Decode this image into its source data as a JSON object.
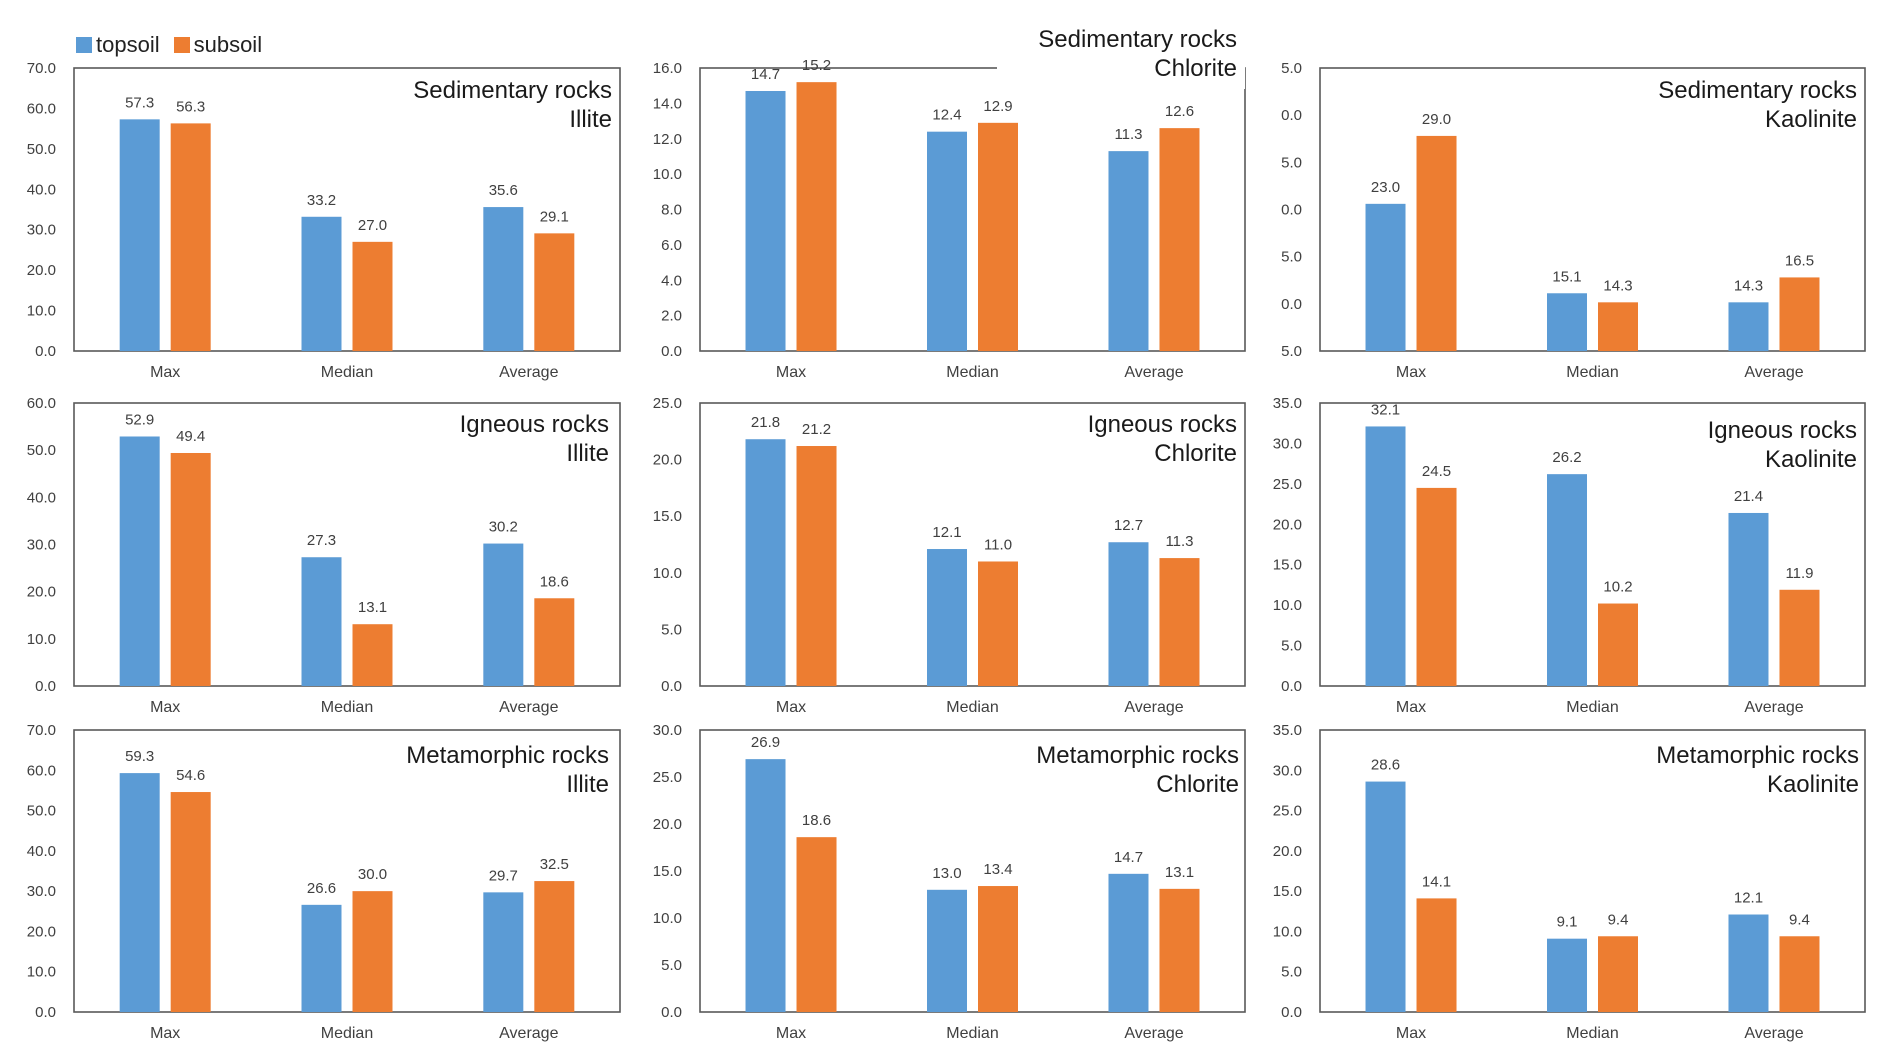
{
  "legend": {
    "topsoil": "topsoil",
    "subsoil": "subsoil"
  },
  "colors": {
    "topsoil": "#5b9bd5",
    "subsoil": "#ed7d31",
    "axis": "#595959",
    "text": "#404040",
    "title": "#1a1a1a"
  },
  "chart_data": [
    {
      "type": "bar",
      "title": [
        "Sedimentary rocks",
        "Illite"
      ],
      "categories": [
        "Max",
        "Median",
        "Average"
      ],
      "series": [
        {
          "name": "topsoil",
          "values": [
            57.3,
            33.2,
            35.6
          ]
        },
        {
          "name": "subsoil",
          "values": [
            56.3,
            27.0,
            29.1
          ]
        }
      ],
      "data_labels": [
        [
          "57.3",
          "33.2",
          "35.6"
        ],
        [
          "56.3",
          "27.0",
          "29.1"
        ]
      ],
      "ylim": [
        0,
        70
      ],
      "yticks": [
        "0.0",
        "10.0",
        "20.0",
        "30.0",
        "40.0",
        "50.0",
        "60.0",
        "70.0"
      ]
    },
    {
      "type": "bar",
      "title": [
        "Sedimentary rocks",
        "Chlorite"
      ],
      "categories": [
        "Max",
        "Median",
        "Average"
      ],
      "series": [
        {
          "name": "topsoil",
          "values": [
            14.7,
            12.4,
            11.3
          ]
        },
        {
          "name": "subsoil",
          "values": [
            15.2,
            12.9,
            12.6
          ]
        }
      ],
      "data_labels": [
        [
          "14.7",
          "12.4",
          "11.3"
        ],
        [
          "15.2",
          "12.9",
          "12.6"
        ]
      ],
      "ylim": [
        0,
        16
      ],
      "yticks": [
        "0.0",
        "2.0",
        "4.0",
        "6.0",
        "8.0",
        "10.0",
        "12.0",
        "14.0",
        "16.0"
      ]
    },
    {
      "type": "bar",
      "title": [
        "Sedimentary rocks",
        "Kaolinite"
      ],
      "categories": [
        "Max",
        "Median",
        "Average"
      ],
      "series": [
        {
          "name": "topsoil",
          "values": [
            23.0,
            15.1,
            14.3
          ]
        },
        {
          "name": "subsoil",
          "values": [
            29.0,
            14.3,
            16.5
          ]
        }
      ],
      "data_labels": [
        [
          "23.0",
          "15.1",
          "14.3"
        ],
        [
          "29.0",
          "14.3",
          "16.5"
        ]
      ],
      "ylim": [
        10,
        35
      ],
      "yticks": [
        "5.0",
        "0.0",
        "5.0",
        "0.0",
        "5.0",
        "0.0",
        "5.0"
      ]
    },
    {
      "type": "bar",
      "title": [
        "Igneous rocks",
        "Illite"
      ],
      "categories": [
        "Max",
        "Median",
        "Average"
      ],
      "series": [
        {
          "name": "topsoil",
          "values": [
            52.9,
            27.3,
            30.2
          ]
        },
        {
          "name": "subsoil",
          "values": [
            49.4,
            13.1,
            18.6
          ]
        }
      ],
      "data_labels": [
        [
          "52.9",
          "27.3",
          "30.2"
        ],
        [
          "49.4",
          "13.1",
          "18.6"
        ]
      ],
      "ylim": [
        0,
        60
      ],
      "yticks": [
        "0.0",
        "10.0",
        "20.0",
        "30.0",
        "40.0",
        "50.0",
        "60.0"
      ]
    },
    {
      "type": "bar",
      "title": [
        "Igneous rocks",
        "Chlorite"
      ],
      "categories": [
        "Max",
        "Median",
        "Average"
      ],
      "series": [
        {
          "name": "topsoil",
          "values": [
            21.8,
            12.1,
            12.7
          ]
        },
        {
          "name": "subsoil",
          "values": [
            21.2,
            11.0,
            11.3
          ]
        }
      ],
      "data_labels": [
        [
          "21.8",
          "12.1",
          "12.7"
        ],
        [
          "21.2",
          "11.0",
          "11.3"
        ]
      ],
      "ylim": [
        0,
        25
      ],
      "yticks": [
        "0.0",
        "5.0",
        "10.0",
        "15.0",
        "20.0",
        "25.0"
      ]
    },
    {
      "type": "bar",
      "title": [
        "Igneous rocks",
        "Kaolinite"
      ],
      "categories": [
        "Max",
        "Median",
        "Average"
      ],
      "series": [
        {
          "name": "topsoil",
          "values": [
            32.1,
            26.2,
            21.4
          ]
        },
        {
          "name": "subsoil",
          "values": [
            24.5,
            10.2,
            11.9
          ]
        }
      ],
      "data_labels": [
        [
          "32.1",
          "26.2",
          "21.4"
        ],
        [
          "24.5",
          "10.2",
          "11.9"
        ]
      ],
      "ylim": [
        0,
        35
      ],
      "yticks": [
        "0.0",
        "5.0",
        "10.0",
        "15.0",
        "20.0",
        "25.0",
        "30.0",
        "35.0"
      ]
    },
    {
      "type": "bar",
      "title": [
        "Metamorphic rocks",
        "Illite"
      ],
      "categories": [
        "Max",
        "Median",
        "Average"
      ],
      "series": [
        {
          "name": "topsoil",
          "values": [
            59.3,
            26.6,
            29.7
          ]
        },
        {
          "name": "subsoil",
          "values": [
            54.6,
            30.0,
            32.5
          ]
        }
      ],
      "data_labels": [
        [
          "59.3",
          "26.6",
          "29.7"
        ],
        [
          "54.6",
          "30.0",
          "32.5"
        ]
      ],
      "ylim": [
        0,
        70
      ],
      "yticks": [
        "0.0",
        "10.0",
        "20.0",
        "30.0",
        "40.0",
        "50.0",
        "60.0",
        "70.0"
      ]
    },
    {
      "type": "bar",
      "title": [
        "Metamorphic rocks",
        "Chlorite"
      ],
      "categories": [
        "Max",
        "Median",
        "Average"
      ],
      "series": [
        {
          "name": "topsoil",
          "values": [
            26.9,
            13.0,
            14.7
          ]
        },
        {
          "name": "subsoil",
          "values": [
            18.6,
            13.4,
            13.1
          ]
        }
      ],
      "data_labels": [
        [
          "26.9",
          "13.0",
          "14.7"
        ],
        [
          "18.6",
          "13.4",
          "13.1"
        ]
      ],
      "ylim": [
        0,
        30
      ],
      "yticks": [
        "0.0",
        "5.0",
        "10.0",
        "15.0",
        "20.0",
        "25.0",
        "30.0"
      ]
    },
    {
      "type": "bar",
      "title": [
        "Metamorphic rocks",
        "Kaolinite"
      ],
      "categories": [
        "Max",
        "Median",
        "Average"
      ],
      "series": [
        {
          "name": "topsoil",
          "values": [
            28.6,
            9.1,
            12.1
          ]
        },
        {
          "name": "subsoil",
          "values": [
            14.1,
            9.4,
            9.4
          ]
        }
      ],
      "data_labels": [
        [
          "28.6",
          "9.1",
          "12.1"
        ],
        [
          "14.1",
          "9.4",
          "9.4"
        ]
      ],
      "ylim": [
        0,
        35
      ],
      "yticks": [
        "0.0",
        "5.0",
        "10.0",
        "15.0",
        "20.0",
        "25.0",
        "30.0",
        "35.0"
      ]
    }
  ]
}
